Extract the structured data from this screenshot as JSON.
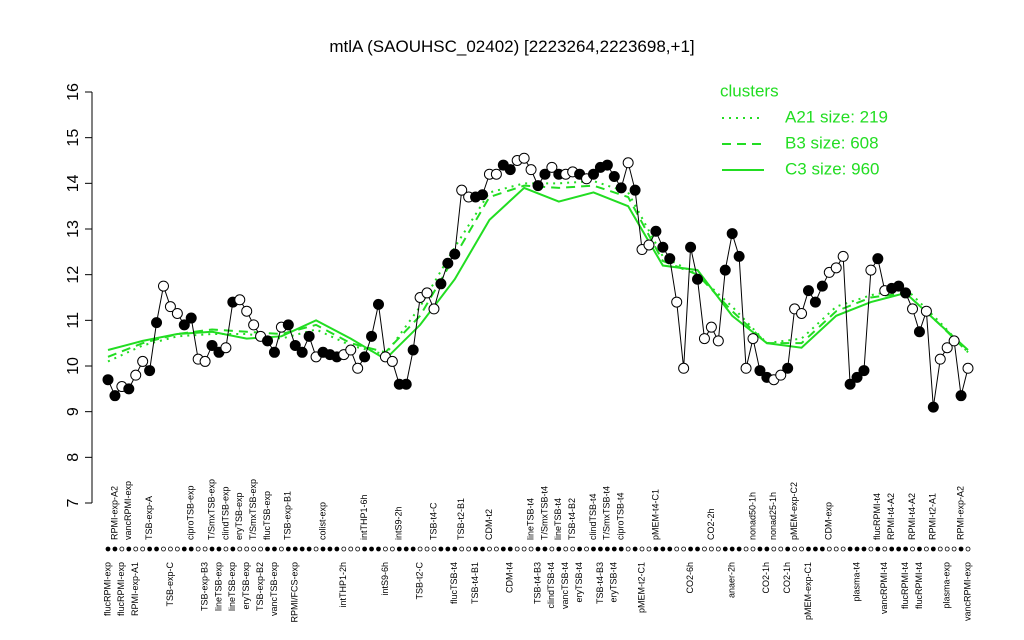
{
  "chart_data": {
    "type": "line",
    "title": "mtlA (SAOUHSC_02402) [2223264,2223698,+1]",
    "categories": [
      "flucRPMI-exp",
      "RPMI-exp-A2",
      "flucRPMI-exp",
      "vancRPMI-exp",
      "RPMI-exp-A1",
      null,
      "TSB-exp-A",
      null,
      null,
      "TSB-exp-C",
      null,
      null,
      "ciproTSB-exp",
      null,
      "TSB-exp-B3",
      "T/SmxTSB-exp",
      "lineTSB-exp",
      "clindTSB-exp",
      "lineTSB-exp",
      "eryTSB-exp",
      "eryTSB-exp",
      "T/SmxTSB-exp",
      "TSB-exp-B2",
      "flucTSB-exp",
      "vancTSB-exp",
      null,
      "TSB-exp-B1",
      "RPMI/FCS-exp",
      null,
      null,
      null,
      "colist-exp",
      null,
      null,
      "intTHP1-2h",
      null,
      null,
      "intTHP1-6h",
      null,
      null,
      "intS9-6h",
      null,
      "intS9-2h",
      null,
      null,
      "TSB-t2-C",
      null,
      "TSB-t4-C",
      null,
      null,
      "flucTSB-t4",
      "TSB-t2-B1",
      null,
      "TSB-t4-B1",
      null,
      "CDM-t2",
      null,
      null,
      "CDM-t4",
      null,
      null,
      "lineTSB-t4",
      "TSB-t4-B3",
      "T/SmxTSB-t4",
      "clindTSB-t4",
      "lineTSB-t4",
      "vancTSB-t4",
      "TSB-t4-B2",
      "eryTSB-t4",
      null,
      "clindTSB-t4",
      "TSB-t4-B3",
      "T/SmxTSB-t4",
      "eryTSB-t4",
      "ciproTSB-t4",
      null,
      null,
      "pMEM-t2-C1",
      null,
      "pMEM-t4-C1",
      null,
      null,
      null,
      null,
      "CO2-6h",
      null,
      null,
      "CO2-2h",
      null,
      null,
      "anaer-2h",
      null,
      null,
      "nonad50-1h",
      null,
      "CO2-1h",
      "nonad25-1h",
      null,
      "CO2-1h",
      "pMEM-exp-C2",
      null,
      "pMEM-exp-C1",
      null,
      null,
      "CDM-exp",
      null,
      null,
      null,
      "plasma-t4",
      null,
      null,
      "flucRPMI-t4",
      "vancRPMI-t4",
      "RPMI-t4-A2",
      null,
      "flucRPMI-t4",
      "RPMI-t4-A2",
      "flucRPMI-t4",
      null,
      "RPMI-t2-A1",
      null,
      "plasma-exp",
      null,
      "RPMI-exp-A2",
      "vancRPMI-exp"
    ],
    "values": [
      9.7,
      9.35,
      9.55,
      9.5,
      9.8,
      10.1,
      9.9,
      10.95,
      11.75,
      11.3,
      11.15,
      10.9,
      11.05,
      10.15,
      10.1,
      10.45,
      10.3,
      10.4,
      11.4,
      11.45,
      11.2,
      10.9,
      10.65,
      10.55,
      10.3,
      10.85,
      10.9,
      10.45,
      10.3,
      10.65,
      10.2,
      10.3,
      10.25,
      10.2,
      10.25,
      10.35,
      9.95,
      10.2,
      10.65,
      11.35,
      10.2,
      10.1,
      9.6,
      9.6,
      10.35,
      11.5,
      11.6,
      11.25,
      11.8,
      12.25,
      12.45,
      13.85,
      13.7,
      13.7,
      13.75,
      14.2,
      14.2,
      14.4,
      14.3,
      14.5,
      14.55,
      14.3,
      13.95,
      14.2,
      14.35,
      14.2,
      14.2,
      14.25,
      14.2,
      14.1,
      14.2,
      14.35,
      14.4,
      14.15,
      13.9,
      14.45,
      13.85,
      12.55,
      12.65,
      12.95,
      12.6,
      12.35,
      11.4,
      9.95,
      12.6,
      11.9,
      10.6,
      10.85,
      10.55,
      12.1,
      12.9,
      12.4,
      9.95,
      10.6,
      9.9,
      9.75,
      9.7,
      9.8,
      9.95,
      11.25,
      11.15,
      11.65,
      11.4,
      11.75,
      12.05,
      12.15,
      12.4,
      9.6,
      9.75,
      9.9,
      12.1,
      12.35,
      11.65,
      11.7,
      11.75,
      11.6,
      11.25,
      10.75,
      11.2,
      9.1,
      10.15,
      10.4,
      10.55,
      9.35,
      9.95
    ],
    "marker_fills": [
      "black",
      "black",
      "white",
      "black",
      "white",
      "white",
      "black",
      "black",
      "white",
      "white",
      "white",
      "black",
      "black",
      "white",
      "white",
      "black",
      "black",
      "white",
      "black",
      "white",
      "white",
      "white",
      "white",
      "black",
      "black",
      "white",
      "black",
      "black",
      "black",
      "black",
      "white",
      "black",
      "black",
      "black",
      "white",
      "white",
      "white",
      "black",
      "black",
      "black",
      "white",
      "white",
      "black",
      "black",
      "black",
      "white",
      "white",
      "white",
      "black",
      "black",
      "black",
      "white",
      "white",
      "black",
      "black",
      "white",
      "white",
      "black",
      "black",
      "white",
      "white",
      "white",
      "black",
      "black",
      "white",
      "black",
      "white",
      "white",
      "black",
      "white",
      "black",
      "black",
      "black",
      "black",
      "black",
      "white",
      "black",
      "white",
      "white",
      "black",
      "black",
      "black",
      "white",
      "white",
      "black",
      "black",
      "white",
      "white",
      "white",
      "black",
      "black",
      "black",
      "white",
      "white",
      "black",
      "black",
      "white",
      "white",
      "black",
      "white",
      "white",
      "black",
      "black",
      "black",
      "white",
      "white",
      "white",
      "black",
      "black",
      "black",
      "white",
      "black",
      "white",
      "black",
      "black",
      "black",
      "white",
      "black",
      "white",
      "black",
      "white",
      "white",
      "white",
      "black",
      "white"
    ],
    "color": "#000000",
    "legend_title": "clusters",
    "series": [
      {
        "name": "A21 size: 219",
        "color": "#22dd22",
        "dash": "dotted",
        "x": [
          0,
          5,
          10,
          15,
          20,
          25,
          30,
          35,
          40,
          45,
          50,
          55,
          60,
          65,
          70,
          75,
          80,
          85,
          90,
          95,
          100,
          105,
          110,
          115,
          120,
          124
        ],
        "values": [
          10.1,
          10.45,
          10.65,
          10.7,
          10.7,
          10.6,
          10.8,
          10.45,
          10.25,
          11.3,
          12.6,
          13.8,
          14.0,
          14.0,
          14.05,
          13.8,
          12.4,
          12.0,
          11.3,
          10.5,
          10.6,
          11.3,
          11.55,
          11.7,
          10.95,
          10.3
        ]
      },
      {
        "name": "B3 size: 608",
        "color": "#22dd22",
        "dash": "dashed",
        "x": [
          0,
          5,
          10,
          15,
          20,
          25,
          30,
          35,
          40,
          45,
          50,
          55,
          60,
          65,
          70,
          75,
          80,
          85,
          90,
          95,
          100,
          105,
          110,
          115,
          120,
          124
        ],
        "values": [
          10.2,
          10.5,
          10.7,
          10.8,
          10.75,
          10.7,
          10.9,
          10.5,
          10.3,
          11.1,
          12.4,
          13.7,
          13.95,
          13.9,
          13.95,
          13.7,
          12.3,
          12.0,
          11.2,
          10.5,
          10.5,
          11.2,
          11.5,
          11.6,
          10.9,
          10.3
        ]
      },
      {
        "name": "C3 size: 960",
        "color": "#22dd22",
        "dash": "solid",
        "x": [
          0,
          5,
          10,
          15,
          20,
          25,
          30,
          35,
          40,
          45,
          50,
          55,
          60,
          65,
          70,
          75,
          80,
          85,
          90,
          95,
          100,
          105,
          110,
          115,
          120,
          124
        ],
        "values": [
          10.35,
          10.55,
          10.7,
          10.75,
          10.6,
          10.65,
          11.0,
          10.6,
          10.15,
          10.9,
          11.9,
          13.2,
          13.9,
          13.6,
          13.8,
          13.5,
          12.2,
          12.1,
          11.1,
          10.5,
          10.4,
          11.1,
          11.4,
          11.6,
          10.9,
          10.35
        ]
      }
    ],
    "ylim": [
      7,
      16
    ],
    "yticks": [
      7,
      8,
      9,
      10,
      11,
      12,
      13,
      14,
      15,
      16
    ]
  }
}
